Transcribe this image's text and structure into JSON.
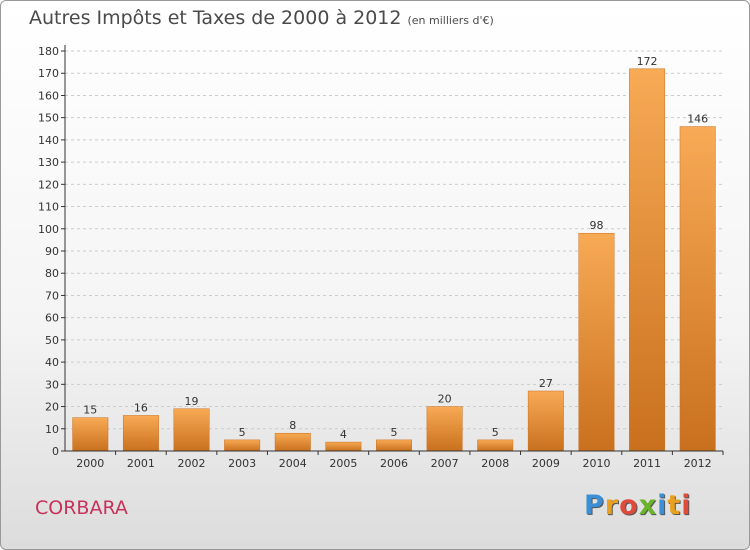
{
  "title": "Autres Impôts et Taxes de 2000 à 2012",
  "unit": "(en milliers d'€)",
  "commune": "CORBARA",
  "logo": {
    "letters": [
      "P",
      "r",
      "o",
      "x",
      "i",
      "t",
      "i"
    ],
    "colors": [
      "#3a8fd6",
      "#e8a020",
      "#e04a3a",
      "#6ab42c",
      "#3a8fd6",
      "#e8a020",
      "#e04a3a"
    ]
  },
  "colors": {
    "bar": "#f0943a",
    "bar_light": "#f8aa55",
    "bar_dark": "#c9701e",
    "axis": "#333333",
    "grid": "#cccccc"
  },
  "chart_data": {
    "type": "bar",
    "title": "Autres Impôts et Taxes de 2000 à 2012",
    "categories": [
      "2000",
      "2001",
      "2002",
      "2003",
      "2004",
      "2005",
      "2006",
      "2007",
      "2008",
      "2009",
      "2010",
      "2011",
      "2012"
    ],
    "values": [
      15,
      16,
      19,
      5,
      8,
      4,
      5,
      20,
      5,
      27,
      98,
      172,
      146
    ],
    "ylim": [
      0,
      180
    ],
    "yticks": [
      0,
      10,
      20,
      30,
      40,
      50,
      60,
      70,
      80,
      90,
      100,
      110,
      120,
      130,
      140,
      150,
      160,
      170,
      180
    ],
    "grid": "horizontal dashed",
    "legend": "none"
  }
}
